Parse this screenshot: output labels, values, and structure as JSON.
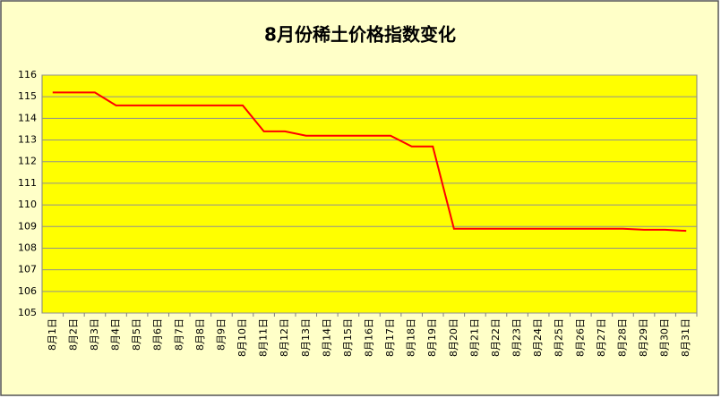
{
  "chart_data": {
    "type": "line",
    "title": "8月份稀土价格指数变化",
    "categories": [
      "8月1日",
      "8月2日",
      "8月3日",
      "8月4日",
      "8月5日",
      "8月6日",
      "8月7日",
      "8月8日",
      "8月9日",
      "8月10日",
      "8月11日",
      "8月12日",
      "8月13日",
      "8月14日",
      "8月15日",
      "8月16日",
      "8月17日",
      "8月18日",
      "8月19日",
      "8月20日",
      "8月21日",
      "8月22日",
      "8月23日",
      "8月24日",
      "8月25日",
      "8月26日",
      "8月27日",
      "8月28日",
      "8月29日",
      "8月30日",
      "8月31日"
    ],
    "values": [
      115.2,
      115.2,
      115.2,
      114.6,
      114.6,
      114.6,
      114.6,
      114.6,
      114.6,
      114.6,
      113.4,
      113.4,
      113.2,
      113.2,
      113.2,
      113.2,
      113.2,
      112.7,
      112.7,
      108.9,
      108.9,
      108.9,
      108.9,
      108.9,
      108.9,
      108.9,
      108.9,
      108.9,
      108.85,
      108.85,
      108.8
    ],
    "color": "#ff0000",
    "ylim": [
      105,
      116
    ],
    "yticks": [
      105,
      106,
      107,
      108,
      109,
      110,
      111,
      112,
      113,
      114,
      115,
      116
    ],
    "grid": true
  }
}
